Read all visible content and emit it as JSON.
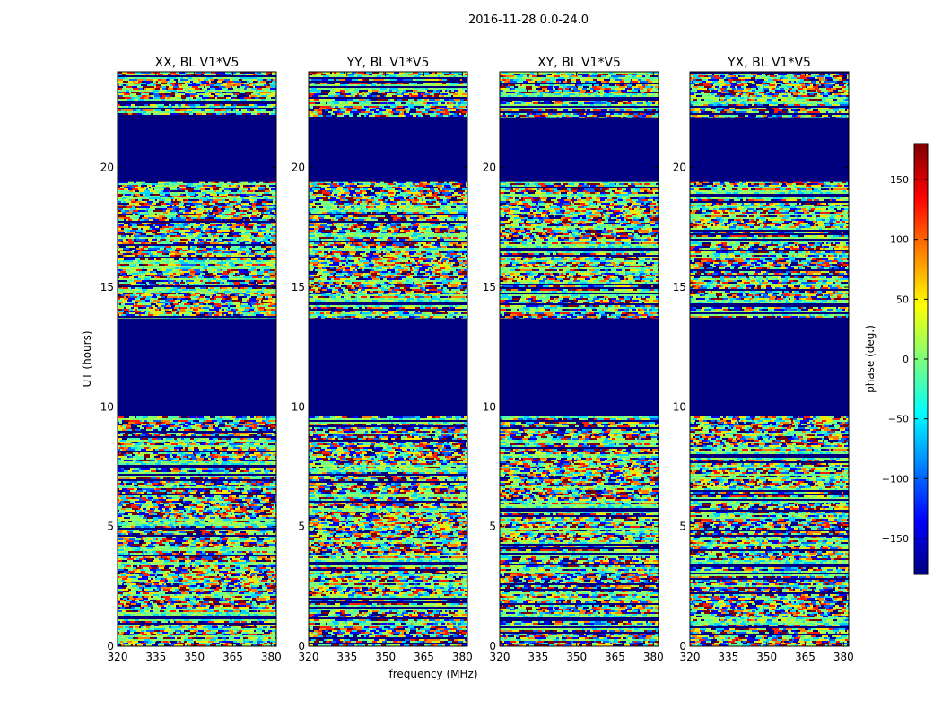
{
  "chart_data": {
    "type": "heatmap",
    "suptitle": "2016-11-28 0.0-24.0",
    "xlabel": "frequency (MHz)",
    "ylabel": "UT (hours)",
    "xlim": [
      320,
      382
    ],
    "ylim": [
      0,
      24
    ],
    "xticks": [
      320,
      335,
      350,
      365,
      380
    ],
    "yticks": [
      0,
      5,
      10,
      15,
      20
    ],
    "panels": [
      {
        "title": "XX, BL V1*V5"
      },
      {
        "title": "YY, BL V1*V5"
      },
      {
        "title": "XY, BL V1*V5"
      },
      {
        "title": "YX, BL V1*V5"
      }
    ],
    "flagged_intervals_ut": [
      [
        9.6,
        13.7
      ],
      [
        19.4,
        22.1
      ]
    ],
    "colorbar": {
      "label": "phase (deg.)",
      "range": [
        -180,
        180
      ],
      "ticks": [
        150,
        100,
        50,
        0,
        -50,
        -100,
        -150
      ],
      "colormap": "jet"
    }
  }
}
